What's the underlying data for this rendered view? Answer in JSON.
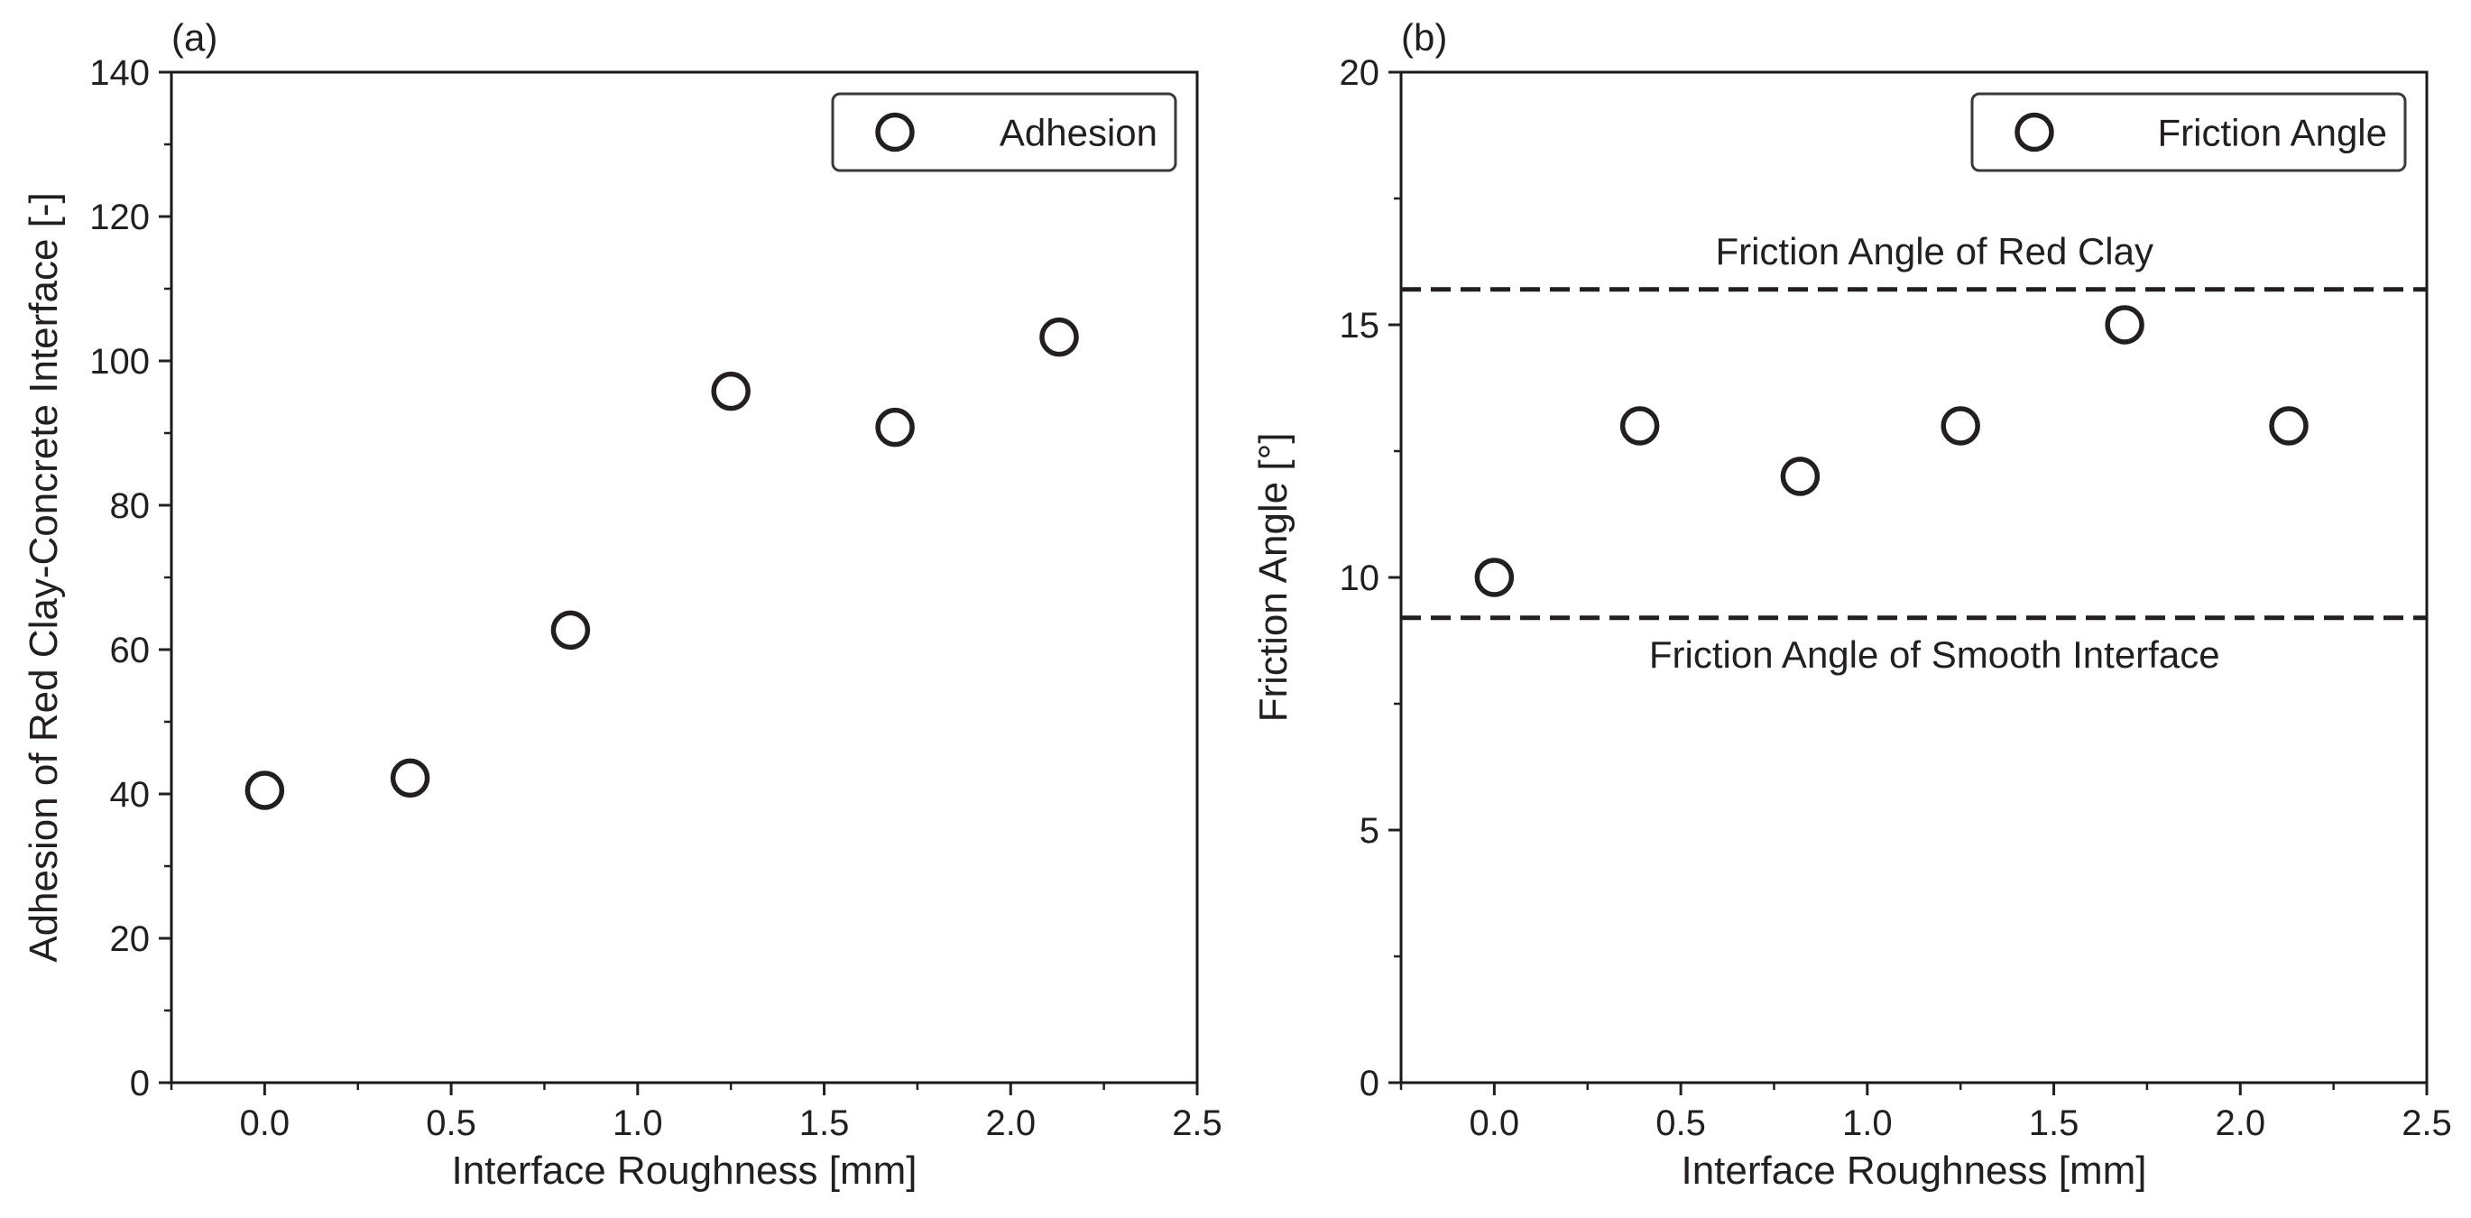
{
  "chart_data": [
    {
      "type": "scatter",
      "panel_label": "(a)",
      "xlabel": "Interface Roughness [mm]",
      "ylabel": "Adhesion of Red Clay-Concrete Interface [-]",
      "xlim": [
        -0.25,
        2.5
      ],
      "ylim": [
        0,
        140
      ],
      "xticks": [
        0.0,
        0.5,
        1.0,
        1.5,
        2.0,
        2.5
      ],
      "xtick_labels": [
        "0.0",
        "0.5",
        "1.0",
        "1.5",
        "2.0",
        "2.5"
      ],
      "yticks": [
        0,
        20,
        40,
        60,
        80,
        100,
        120,
        140
      ],
      "ytick_labels": [
        "0",
        "20",
        "40",
        "60",
        "80",
        "100",
        "120",
        "140"
      ],
      "grid": false,
      "legend": {
        "position": "top-right",
        "entries": [
          "Adhesion"
        ]
      },
      "series": [
        {
          "name": "Adhesion",
          "marker": "open-circle",
          "x": [
            0.0,
            0.39,
            0.82,
            1.25,
            1.69,
            2.13
          ],
          "y": [
            40.5,
            42.2,
            62.7,
            95.8,
            90.8,
            103.3
          ]
        }
      ],
      "reference_lines": []
    },
    {
      "type": "scatter",
      "panel_label": "(b)",
      "xlabel": "Interface Roughness [mm]",
      "ylabel": "Friction Angle [°]",
      "xlim": [
        -0.25,
        2.5
      ],
      "ylim": [
        0,
        20
      ],
      "xticks": [
        0.0,
        0.5,
        1.0,
        1.5,
        2.0,
        2.5
      ],
      "xtick_labels": [
        "0.0",
        "0.5",
        "1.0",
        "1.5",
        "2.0",
        "2.5"
      ],
      "yticks": [
        0,
        5,
        10,
        15,
        20
      ],
      "ytick_labels": [
        "0",
        "5",
        "10",
        "15",
        "20"
      ],
      "grid": false,
      "legend": {
        "position": "top-right",
        "entries": [
          "Friction Angle"
        ]
      },
      "series": [
        {
          "name": "Friction Angle",
          "marker": "open-circle",
          "x": [
            0.0,
            0.39,
            0.82,
            1.25,
            1.69,
            2.13
          ],
          "y": [
            10,
            13,
            12,
            13,
            15,
            13
          ]
        }
      ],
      "reference_lines": [
        {
          "label": "Friction Angle of Red Clay",
          "y": 15.7,
          "style": "dashed",
          "label_side": "above"
        },
        {
          "label": "Friction Angle of Smooth Interface",
          "y": 9.2,
          "style": "dashed",
          "label_side": "below"
        }
      ]
    }
  ],
  "colors": {
    "ink": "#231f20",
    "frame": "#1a1a1a",
    "legend_border": "#3a3a3a",
    "background": "#ffffff"
  }
}
